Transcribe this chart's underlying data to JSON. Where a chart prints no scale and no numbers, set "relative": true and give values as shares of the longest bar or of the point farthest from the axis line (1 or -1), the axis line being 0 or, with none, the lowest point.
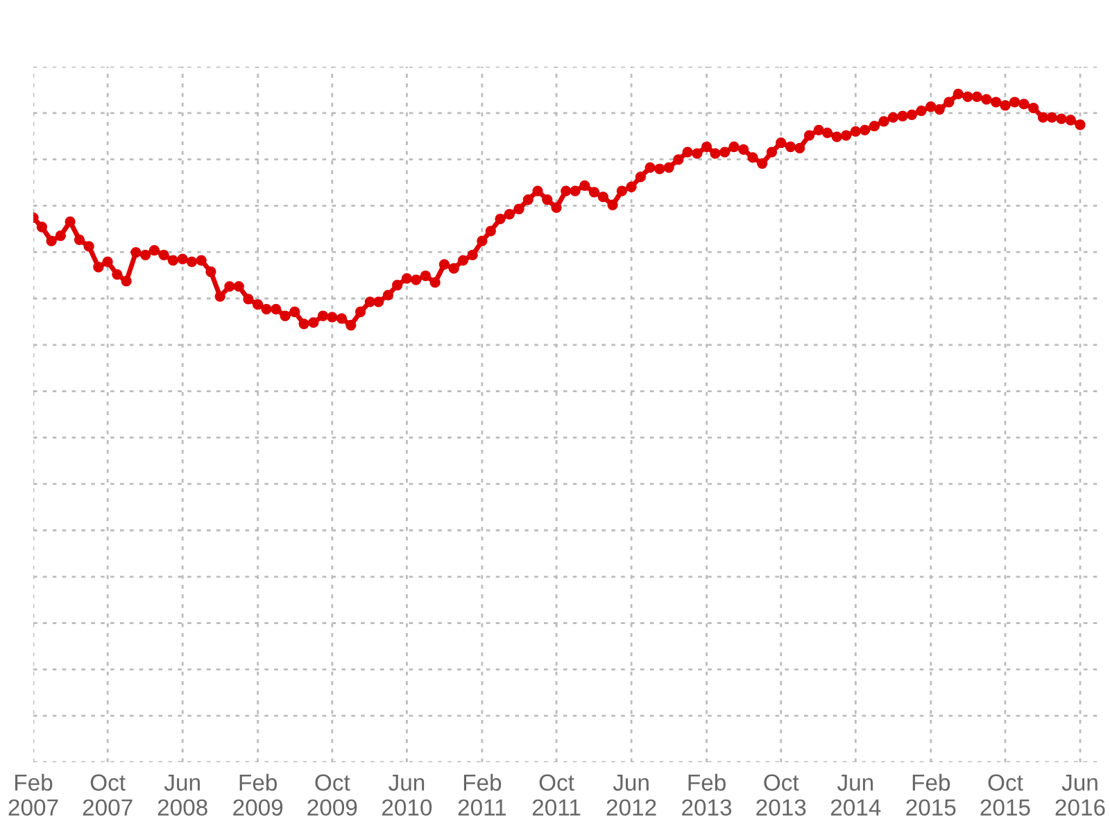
{
  "chart_data": {
    "type": "line",
    "relative": true,
    "grid": true,
    "marker": "circle",
    "line_style": "solid",
    "legend": false,
    "x": [
      "2007-02",
      "2007-03",
      "2007-04",
      "2007-05",
      "2007-06",
      "2007-07",
      "2007-08",
      "2007-09",
      "2007-10",
      "2007-11",
      "2007-12",
      "2008-01",
      "2008-02",
      "2008-03",
      "2008-04",
      "2008-05",
      "2008-06",
      "2008-07",
      "2008-08",
      "2008-09",
      "2008-10",
      "2008-11",
      "2008-12",
      "2009-01",
      "2009-02",
      "2009-03",
      "2009-04",
      "2009-05",
      "2009-06",
      "2009-07",
      "2009-08",
      "2009-09",
      "2009-10",
      "2009-11",
      "2009-12",
      "2010-01",
      "2010-02",
      "2010-03",
      "2010-04",
      "2010-05",
      "2010-06",
      "2010-07",
      "2010-08",
      "2010-09",
      "2010-10",
      "2010-11",
      "2010-12",
      "2011-01",
      "2011-02",
      "2011-03",
      "2011-04",
      "2011-05",
      "2011-06",
      "2011-07",
      "2011-08",
      "2011-09",
      "2011-10",
      "2011-11",
      "2011-12",
      "2012-01",
      "2012-02",
      "2012-03",
      "2012-04",
      "2012-05",
      "2012-06",
      "2012-07",
      "2012-08",
      "2012-09",
      "2012-10",
      "2012-11",
      "2012-12",
      "2013-01",
      "2013-02",
      "2013-03",
      "2013-04",
      "2013-05",
      "2013-06",
      "2013-07",
      "2013-08",
      "2013-09",
      "2013-10",
      "2013-11",
      "2013-12",
      "2014-01",
      "2014-02",
      "2014-03",
      "2014-04",
      "2014-05",
      "2014-06",
      "2014-07",
      "2014-08",
      "2014-09",
      "2014-10",
      "2014-11",
      "2014-12",
      "2015-01",
      "2015-02",
      "2015-03",
      "2015-04",
      "2015-05",
      "2015-06",
      "2015-07",
      "2015-08",
      "2015-09",
      "2015-10",
      "2015-11",
      "2015-12",
      "2016-01",
      "2016-02",
      "2016-03",
      "2016-04",
      "2016-05",
      "2016-06"
    ],
    "xlim": [
      "2007-02",
      "2016-08"
    ],
    "xticks": [
      {
        "value": "2007-02",
        "label": "Feb\n2007"
      },
      {
        "value": "2007-10",
        "label": "Oct\n2007"
      },
      {
        "value": "2008-06",
        "label": "Jun\n2008"
      },
      {
        "value": "2009-02",
        "label": "Feb\n2009"
      },
      {
        "value": "2009-10",
        "label": "Oct\n2009"
      },
      {
        "value": "2010-06",
        "label": "Jun\n2010"
      },
      {
        "value": "2011-02",
        "label": "Feb\n2011"
      },
      {
        "value": "2011-10",
        "label": "Oct\n2011"
      },
      {
        "value": "2012-06",
        "label": "Jun\n2012"
      },
      {
        "value": "2013-02",
        "label": "Feb\n2013"
      },
      {
        "value": "2013-10",
        "label": "Oct\n2013"
      },
      {
        "value": "2014-06",
        "label": "Jun\n2014"
      },
      {
        "value": "2015-02",
        "label": "Feb\n2015"
      },
      {
        "value": "2015-10",
        "label": "Oct\n2015"
      },
      {
        "value": "2016-06",
        "label": "Jun\n2016"
      }
    ],
    "series": [
      {
        "color": "#dd0000",
        "values": [
          0.815,
          0.801,
          0.78,
          0.788,
          0.809,
          0.782,
          0.772,
          0.741,
          0.749,
          0.73,
          0.72,
          0.763,
          0.759,
          0.766,
          0.759,
          0.751,
          0.753,
          0.749,
          0.751,
          0.734,
          0.697,
          0.712,
          0.712,
          0.693,
          0.685,
          0.678,
          0.678,
          0.668,
          0.674,
          0.656,
          0.658,
          0.668,
          0.666,
          0.664,
          0.654,
          0.674,
          0.689,
          0.689,
          0.699,
          0.714,
          0.724,
          0.722,
          0.728,
          0.718,
          0.745,
          0.739,
          0.751,
          0.759,
          0.78,
          0.795,
          0.813,
          0.82,
          0.828,
          0.842,
          0.855,
          0.842,
          0.83,
          0.855,
          0.855,
          0.863,
          0.853,
          0.846,
          0.834,
          0.855,
          0.861,
          0.876,
          0.89,
          0.888,
          0.89,
          0.902,
          0.913,
          0.911,
          0.921,
          0.911,
          0.913,
          0.921,
          0.917,
          0.905,
          0.896,
          0.913,
          0.927,
          0.921,
          0.919,
          0.938,
          0.946,
          0.942,
          0.936,
          0.938,
          0.944,
          0.946,
          0.952,
          0.959,
          0.965,
          0.967,
          0.969,
          0.975,
          0.981,
          0.977,
          0.988,
          1,
          0.996,
          0.996,
          0.992,
          0.988,
          0.983,
          0.988,
          0.985,
          0.979,
          0.965,
          0.965,
          0.963,
          0.961,
          0.954
        ]
      }
    ]
  }
}
